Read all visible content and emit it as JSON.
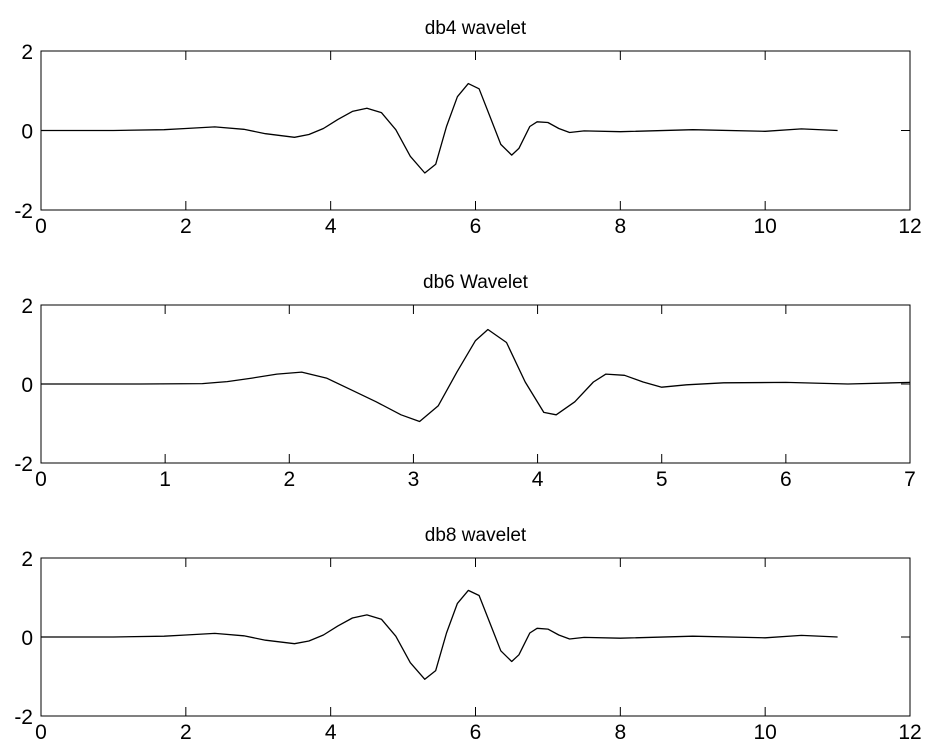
{
  "figure": {
    "background": "#ffffff",
    "line_color": "#000000"
  },
  "chart_data": [
    {
      "type": "line",
      "title": "db4 wavelet",
      "xlabel": "",
      "ylabel": "",
      "xlim": [
        0,
        12
      ],
      "ylim": [
        -2,
        2
      ],
      "xticks": [
        0,
        2,
        4,
        6,
        8,
        10,
        12
      ],
      "yticks": [
        -2,
        0,
        2
      ],
      "grid": false,
      "series": [
        {
          "color": "#000000",
          "x": [
            0,
            1.0,
            1.7,
            2.0,
            2.4,
            2.8,
            3.1,
            3.5,
            3.7,
            3.9,
            4.1,
            4.3,
            4.5,
            4.7,
            4.9,
            5.1,
            5.3,
            5.45,
            5.6,
            5.75,
            5.9,
            6.05,
            6.2,
            6.35,
            6.5,
            6.6,
            6.75,
            6.85,
            7.0,
            7.15,
            7.3,
            7.5,
            8.0,
            9.0,
            10.0,
            10.5,
            11.0
          ],
          "y": [
            0,
            0,
            0.02,
            0.05,
            0.09,
            0.03,
            -0.08,
            -0.17,
            -0.1,
            0.05,
            0.28,
            0.48,
            0.56,
            0.45,
            0.02,
            -0.65,
            -1.07,
            -0.85,
            0.1,
            0.85,
            1.18,
            1.05,
            0.35,
            -0.35,
            -0.62,
            -0.45,
            0.1,
            0.22,
            0.2,
            0.05,
            -0.05,
            -0.01,
            -0.03,
            0.02,
            -0.02,
            0.04,
            0
          ]
        }
      ]
    },
    {
      "type": "line",
      "title": "db6 Wavelet",
      "xlabel": "",
      "ylabel": "",
      "xlim": [
        0,
        7
      ],
      "ylim": [
        -2,
        2
      ],
      "xticks": [
        0,
        1,
        2,
        3,
        4,
        5,
        6,
        7
      ],
      "yticks": [
        -2,
        0,
        2
      ],
      "grid": false,
      "series": [
        {
          "color": "#000000",
          "x": [
            0,
            0.8,
            1.3,
            1.5,
            1.7,
            1.9,
            2.1,
            2.3,
            2.5,
            2.7,
            2.9,
            3.05,
            3.2,
            3.35,
            3.5,
            3.6,
            3.75,
            3.9,
            4.05,
            4.15,
            4.3,
            4.45,
            4.55,
            4.7,
            4.85,
            5.0,
            5.2,
            5.5,
            6.0,
            6.5,
            7.0
          ],
          "y": [
            0,
            0,
            0.01,
            0.06,
            0.15,
            0.25,
            0.3,
            0.15,
            -0.15,
            -0.45,
            -0.78,
            -0.95,
            -0.55,
            0.3,
            1.1,
            1.38,
            1.05,
            0.05,
            -0.72,
            -0.78,
            -0.45,
            0.05,
            0.25,
            0.22,
            0.05,
            -0.08,
            -0.02,
            0.03,
            0.04,
            0.0,
            0.04
          ]
        }
      ]
    },
    {
      "type": "line",
      "title": "db8 wavelet",
      "xlabel": "",
      "ylabel": "",
      "xlim": [
        0,
        12
      ],
      "ylim": [
        -2,
        2
      ],
      "xticks": [
        0,
        2,
        4,
        6,
        8,
        10,
        12
      ],
      "yticks": [
        -2,
        0,
        2
      ],
      "grid": false,
      "series": [
        {
          "color": "#000000",
          "x": [
            0,
            1.0,
            1.7,
            2.0,
            2.4,
            2.8,
            3.1,
            3.5,
            3.7,
            3.9,
            4.1,
            4.3,
            4.5,
            4.7,
            4.9,
            5.1,
            5.3,
            5.45,
            5.6,
            5.75,
            5.9,
            6.05,
            6.2,
            6.35,
            6.5,
            6.6,
            6.75,
            6.85,
            7.0,
            7.15,
            7.3,
            7.5,
            8.0,
            9.0,
            10.0,
            10.5,
            11.0
          ],
          "y": [
            0,
            0,
            0.02,
            0.05,
            0.09,
            0.03,
            -0.08,
            -0.17,
            -0.1,
            0.05,
            0.28,
            0.48,
            0.56,
            0.45,
            0.02,
            -0.65,
            -1.07,
            -0.85,
            0.1,
            0.85,
            1.18,
            1.05,
            0.35,
            -0.35,
            -0.62,
            -0.45,
            0.1,
            0.22,
            0.2,
            0.05,
            -0.05,
            -0.01,
            -0.03,
            0.02,
            -0.02,
            0.04,
            0
          ]
        }
      ]
    }
  ]
}
